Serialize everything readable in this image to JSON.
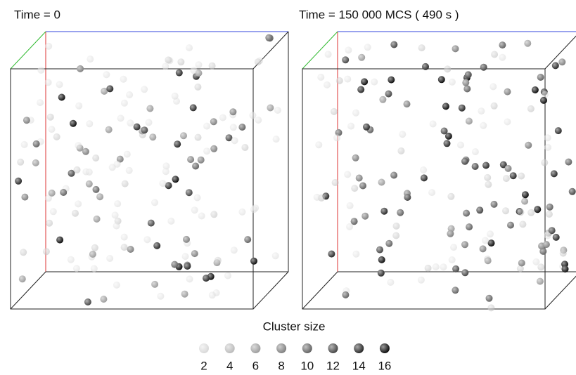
{
  "panels": [
    {
      "title": "Time = 0"
    },
    {
      "title": "Time = 150 000 MCS ( 490 s )"
    }
  ],
  "legend": {
    "title": "Cluster size",
    "items": [
      2,
      4,
      6,
      8,
      10,
      12,
      14,
      16
    ]
  }
}
